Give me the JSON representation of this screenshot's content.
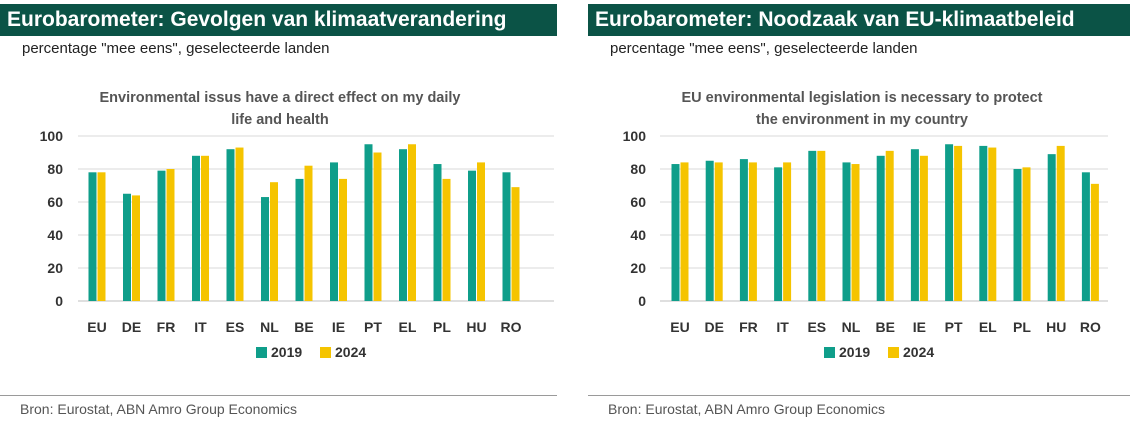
{
  "colors": {
    "header_bg": "#0b5346",
    "series_2019": "#0f9e8a",
    "series_2024": "#f5c400",
    "grid": "#d9d9d9"
  },
  "panels": [
    {
      "title": "Eurobarometer: Gevolgen van klimaatverandering",
      "subtitle": "percentage \"mee eens\", geselecteerde landen",
      "source": "Bron: Eurostat, ABN Amro Group Economics"
    },
    {
      "title": "Eurobarometer: Noodzaak van EU-klimaatbeleid",
      "subtitle": "percentage \"mee eens\", geselecteerde landen",
      "source": "Bron:  Eurostat, ABN Amro Group Economics"
    }
  ],
  "chart_data": [
    {
      "type": "bar",
      "title_lines": [
        "Environmental issus have a direct effect on my daily",
        "life and health"
      ],
      "categories": [
        "EU",
        "DE",
        "FR",
        "IT",
        "ES",
        "NL",
        "BE",
        "IE",
        "PT",
        "EL",
        "PL",
        "HU",
        "RO"
      ],
      "series": [
        {
          "name": "2019",
          "values": [
            78,
            65,
            79,
            88,
            92,
            63,
            74,
            84,
            95,
            92,
            83,
            79,
            78
          ]
        },
        {
          "name": "2024",
          "values": [
            78,
            64,
            80,
            88,
            93,
            72,
            82,
            74,
            90,
            95,
            74,
            84,
            69
          ]
        }
      ],
      "ylim": [
        0,
        100
      ],
      "yticks": [
        "0",
        "20",
        "40",
        "60",
        "80",
        "100"
      ],
      "xlabel": "",
      "ylabel": "",
      "grid": true,
      "legend": "bottom-center"
    },
    {
      "type": "bar",
      "title_lines": [
        "EU environmental legislation is necessary to protect",
        "the environment in my country"
      ],
      "categories": [
        "EU",
        "DE",
        "FR",
        "IT",
        "ES",
        "NL",
        "BE",
        "IE",
        "PT",
        "EL",
        "PL",
        "HU",
        "RO"
      ],
      "series": [
        {
          "name": "2019",
          "values": [
            83,
            85,
            86,
            81,
            91,
            84,
            88,
            92,
            95,
            94,
            80,
            89,
            78
          ]
        },
        {
          "name": "2024",
          "values": [
            84,
            84,
            84,
            84,
            91,
            83,
            91,
            88,
            94,
            93,
            81,
            94,
            71
          ]
        }
      ],
      "ylim": [
        0,
        100
      ],
      "yticks": [
        "0",
        "20",
        "40",
        "60",
        "80",
        "100"
      ],
      "xlabel": "",
      "ylabel": "",
      "grid": true,
      "legend": "bottom-center"
    }
  ]
}
